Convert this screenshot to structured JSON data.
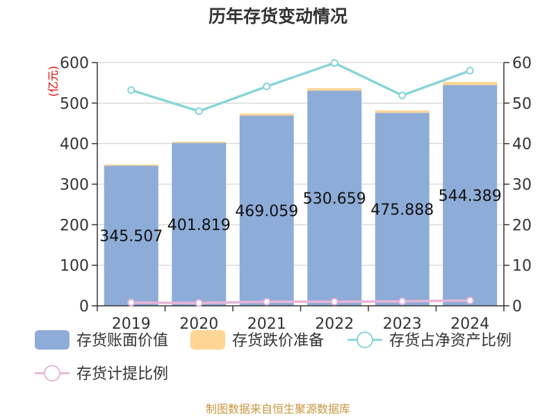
{
  "chart_data": {
    "type": "bar",
    "title": "历年存货变动情况",
    "categories": [
      "2019",
      "2020",
      "2021",
      "2022",
      "2023",
      "2024"
    ],
    "y_left": {
      "unit_label": "(亿元)",
      "ticks": [
        0,
        100,
        200,
        300,
        400,
        500,
        600
      ],
      "lim": [
        0,
        600
      ]
    },
    "y_right": {
      "ticks": [
        0,
        10,
        20,
        30,
        40,
        50,
        60
      ],
      "lim": [
        0,
        60
      ]
    },
    "series": [
      {
        "name": "存货账面价值",
        "kind": "bar-stack",
        "axis": "left",
        "color": "#8eacd8",
        "values": [
          345.507,
          401.819,
          469.059,
          530.659,
          475.888,
          544.389
        ]
      },
      {
        "name": "存货跌价准备",
        "kind": "bar-stack",
        "axis": "left",
        "color": "#fdd595",
        "values": [
          3.0,
          3.0,
          5.0,
          6.0,
          6.0,
          8.0
        ]
      },
      {
        "name": "存货占净资产比例",
        "kind": "line",
        "axis": "right",
        "color": "#88d4d8",
        "values": [
          53.2,
          48.0,
          54.1,
          59.9,
          51.9,
          58.0
        ]
      },
      {
        "name": "存货计提比例",
        "kind": "line",
        "axis": "right",
        "color": "#e8b4d8",
        "values": [
          0.8,
          0.7,
          1.0,
          1.0,
          1.1,
          1.3
        ]
      }
    ],
    "data_labels": [
      "345.507",
      "401.819",
      "469.059",
      "530.659",
      "475.888",
      "544.389"
    ],
    "grid": true,
    "legend_position": "bottom"
  },
  "source_text": "制图数据来自恒生聚源数据库"
}
